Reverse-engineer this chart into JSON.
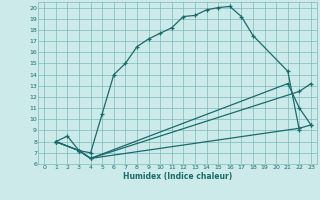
{
  "xlabel": "Humidex (Indice chaleur)",
  "bg_color": "#cceaea",
  "grid_color": "#7bbcbc",
  "line_color": "#1a6b6b",
  "xlim": [
    -0.5,
    23.5
  ],
  "ylim": [
    6,
    20.5
  ],
  "xticks": [
    0,
    1,
    2,
    3,
    4,
    5,
    6,
    7,
    8,
    9,
    10,
    11,
    12,
    13,
    14,
    15,
    16,
    17,
    18,
    19,
    20,
    21,
    22,
    23
  ],
  "yticks": [
    6,
    7,
    8,
    9,
    10,
    11,
    12,
    13,
    14,
    15,
    16,
    17,
    18,
    19,
    20
  ],
  "line1_x": [
    1,
    2,
    3,
    4,
    5,
    6,
    7,
    8,
    9,
    10,
    11,
    12,
    13,
    14,
    15,
    16,
    17,
    18,
    21,
    22
  ],
  "line1_y": [
    8,
    8.5,
    7.2,
    7.0,
    10.5,
    14.0,
    15.0,
    16.5,
    17.2,
    17.7,
    18.2,
    19.2,
    19.3,
    19.8,
    20.0,
    20.1,
    19.2,
    17.5,
    14.3,
    9.0
  ],
  "line2_x": [
    1,
    3,
    4,
    22,
    23
  ],
  "line2_y": [
    8,
    7.2,
    6.5,
    9.2,
    9.5
  ],
  "line3_x": [
    1,
    3,
    4,
    22,
    23
  ],
  "line3_y": [
    8,
    7.2,
    6.5,
    12.5,
    13.2
  ],
  "line4_x": [
    1,
    3,
    4,
    21,
    22,
    23
  ],
  "line4_y": [
    8,
    7.2,
    6.5,
    13.2,
    11.0,
    9.5
  ]
}
